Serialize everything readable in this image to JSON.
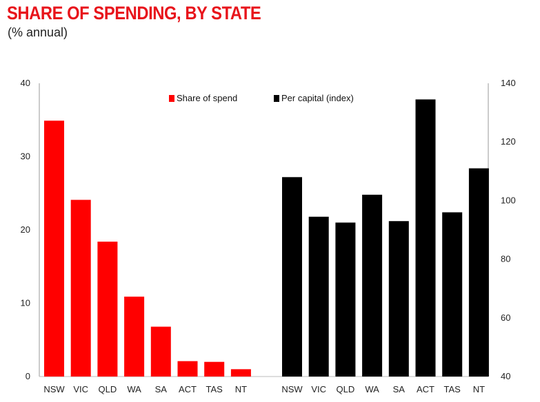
{
  "header": {
    "title": "SHARE OF SPENDING, BY STATE",
    "subtitle": "(% annual)"
  },
  "colors": {
    "share": "#ff0000",
    "per_capita": "#000000",
    "title": "#e8141b"
  },
  "chart_data": {
    "type": "bar",
    "categories": [
      "NSW",
      "VIC",
      "QLD",
      "WA",
      "SA",
      "ACT",
      "TAS",
      "NT"
    ],
    "series": [
      {
        "name": "Share of spend",
        "axis": "left",
        "values": [
          34.9,
          24.1,
          18.4,
          10.9,
          6.8,
          2.1,
          2.0,
          1.0
        ]
      },
      {
        "name": "Per capital (index)",
        "axis": "right",
        "values": [
          108,
          94.5,
          92.5,
          102,
          93,
          134.5,
          96,
          111
        ]
      }
    ],
    "left_axis": {
      "min": 0,
      "max": 40,
      "ticks": [
        0,
        10,
        20,
        30,
        40
      ]
    },
    "right_axis": {
      "min": 40,
      "max": 140,
      "ticks": [
        40,
        60,
        80,
        100,
        120,
        140
      ]
    },
    "legend_position": "top-center"
  }
}
